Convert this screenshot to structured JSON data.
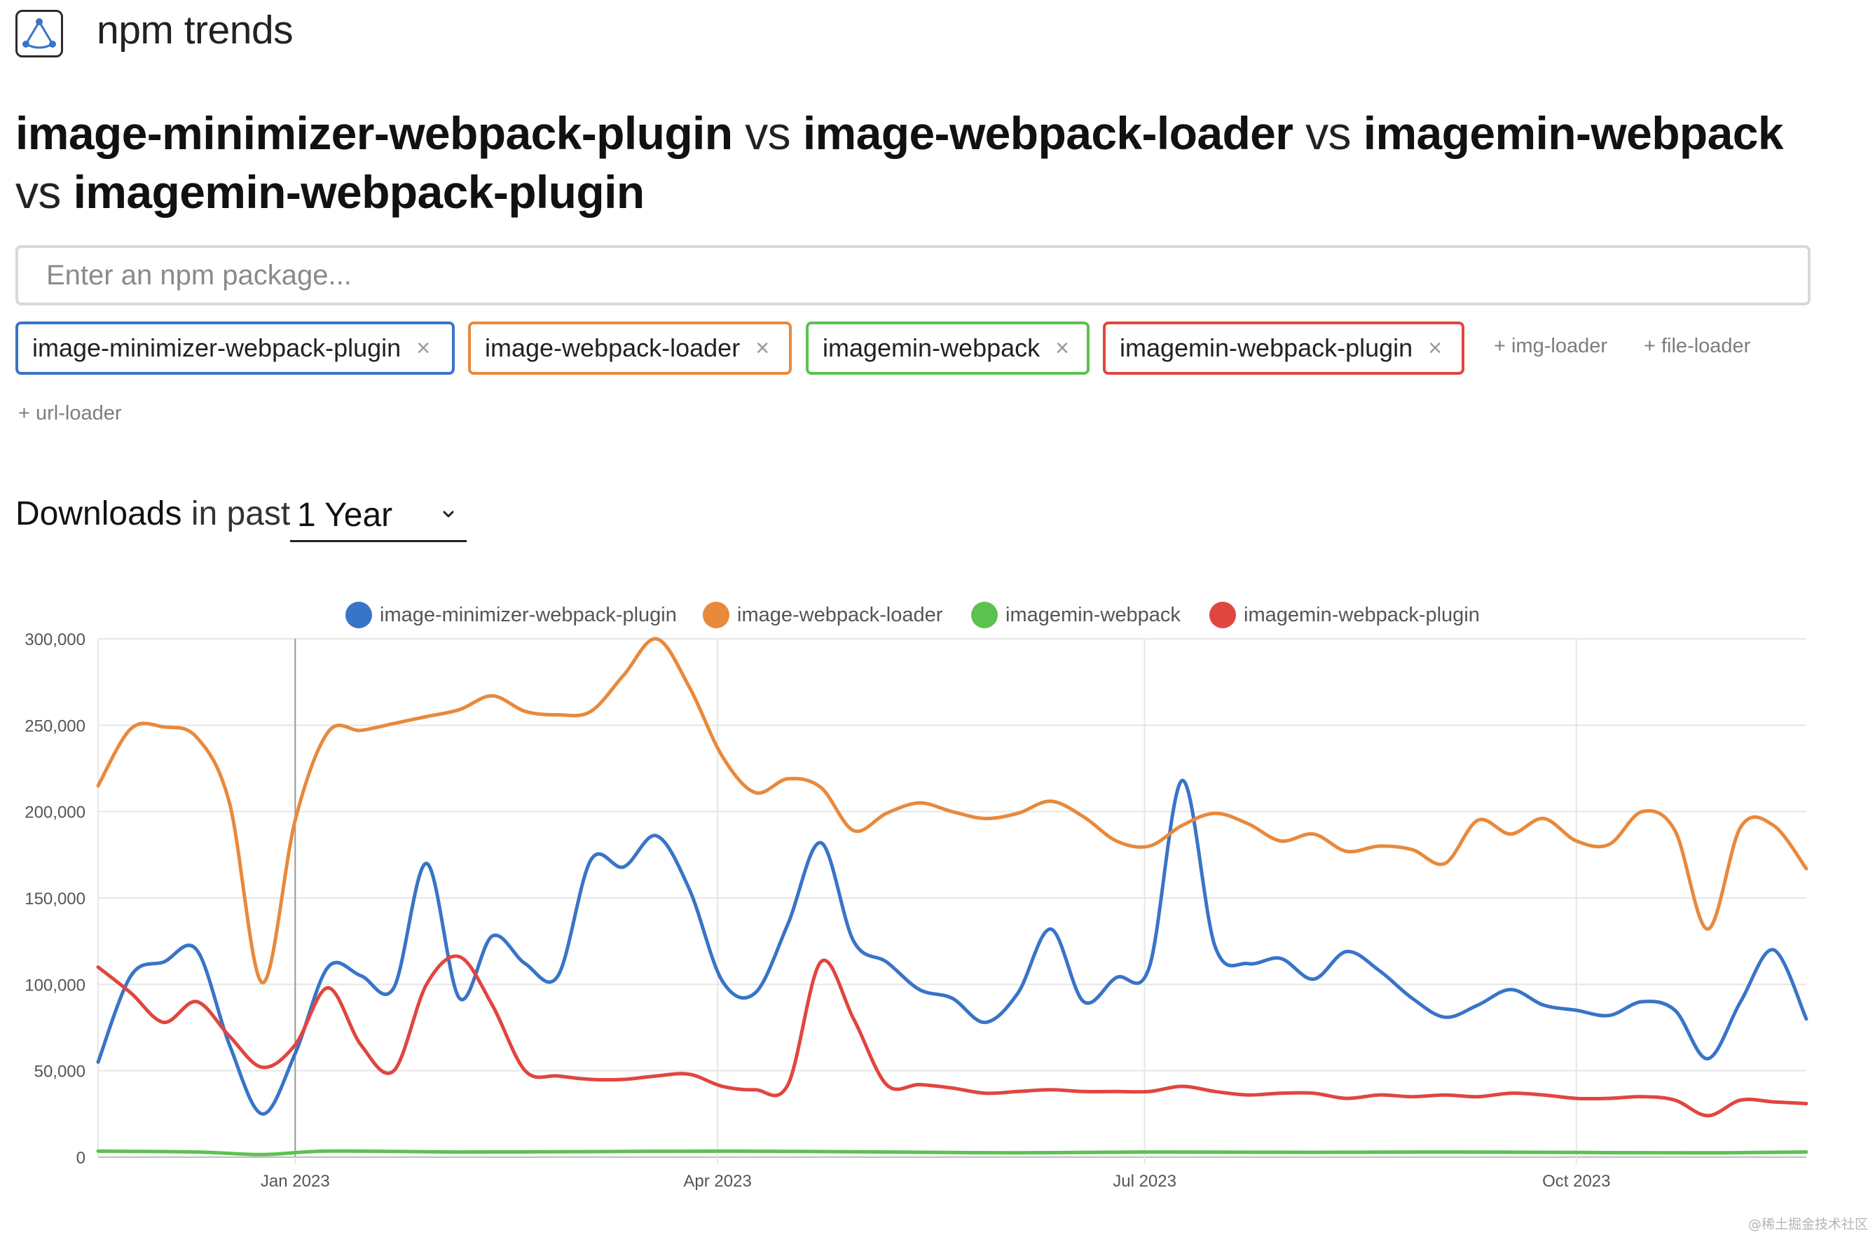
{
  "brand": {
    "name": "npm trends",
    "logo_icon": "npm-trends-logo-icon"
  },
  "title": {
    "packages": [
      "image-minimizer-webpack-plugin",
      "image-webpack-loader",
      "imagemin-webpack",
      "imagemin-webpack-plugin"
    ],
    "separator": "vs"
  },
  "search": {
    "placeholder": "Enter an npm package...",
    "value": ""
  },
  "selected_packages": [
    {
      "name": "image-minimizer-webpack-plugin",
      "color": "#3874c8",
      "remove_label": "×"
    },
    {
      "name": "image-webpack-loader",
      "color": "#e8893c",
      "remove_label": "×"
    },
    {
      "name": "imagemin-webpack",
      "color": "#5cc150",
      "remove_label": "×"
    },
    {
      "name": "imagemin-webpack-plugin",
      "color": "#e0463f",
      "remove_label": "×"
    }
  ],
  "suggestions": [
    "+ img-loader",
    "+ file-loader",
    "+ url-loader"
  ],
  "downloads_header": {
    "strong": "Downloads",
    "light": "in past",
    "period": "1 Year",
    "caret_icon": "chevron-down-icon"
  },
  "chart_data": {
    "type": "line",
    "title": "",
    "xlabel": "",
    "ylabel": "",
    "ylim": [
      0,
      300000
    ],
    "yticks": [
      0,
      50000,
      100000,
      150000,
      200000,
      250000,
      300000
    ],
    "ytick_labels": [
      "0",
      "50,000",
      "100,000",
      "150,000",
      "200,000",
      "250,000",
      "300,000"
    ],
    "xticks": [
      "Jan 2023",
      "Apr 2023",
      "Jul 2023",
      "Oct 2023"
    ],
    "xtick_dates": [
      "2023-01-01",
      "2023-04-01",
      "2023-07-01",
      "2023-10-01"
    ],
    "xlim": [
      "2022-11-20",
      "2023-11-19"
    ],
    "grid": true,
    "legend_position": "top",
    "series": [
      {
        "name": "image-minimizer-webpack-plugin",
        "color": "#3874c8",
        "points": [
          [
            "2022-11-20",
            55000
          ],
          [
            "2022-11-27",
            105000
          ],
          [
            "2022-12-04",
            113000
          ],
          [
            "2022-12-11",
            120000
          ],
          [
            "2022-12-18",
            65000
          ],
          [
            "2022-12-25",
            25000
          ],
          [
            "2023-01-01",
            60000
          ],
          [
            "2023-01-08",
            110000
          ],
          [
            "2023-01-15",
            105000
          ],
          [
            "2023-01-22",
            98000
          ],
          [
            "2023-01-29",
            170000
          ],
          [
            "2023-02-05",
            92000
          ],
          [
            "2023-02-12",
            128000
          ],
          [
            "2023-02-19",
            112000
          ],
          [
            "2023-02-26",
            105000
          ],
          [
            "2023-03-05",
            172000
          ],
          [
            "2023-03-12",
            168000
          ],
          [
            "2023-03-19",
            186000
          ],
          [
            "2023-03-26",
            155000
          ],
          [
            "2023-04-02",
            102000
          ],
          [
            "2023-04-09",
            95000
          ],
          [
            "2023-04-16",
            135000
          ],
          [
            "2023-04-23",
            182000
          ],
          [
            "2023-04-30",
            125000
          ],
          [
            "2023-05-07",
            113000
          ],
          [
            "2023-05-14",
            97000
          ],
          [
            "2023-05-21",
            92000
          ],
          [
            "2023-05-28",
            78000
          ],
          [
            "2023-06-04",
            95000
          ],
          [
            "2023-06-11",
            132000
          ],
          [
            "2023-06-18",
            90000
          ],
          [
            "2023-06-25",
            104000
          ],
          [
            "2023-07-02",
            110000
          ],
          [
            "2023-07-09",
            218000
          ],
          [
            "2023-07-16",
            122000
          ],
          [
            "2023-07-23",
            112000
          ],
          [
            "2023-07-30",
            115000
          ],
          [
            "2023-08-06",
            103000
          ],
          [
            "2023-08-13",
            119000
          ],
          [
            "2023-08-20",
            108000
          ],
          [
            "2023-08-27",
            92000
          ],
          [
            "2023-09-03",
            81000
          ],
          [
            "2023-09-10",
            88000
          ],
          [
            "2023-09-17",
            97000
          ],
          [
            "2023-09-24",
            88000
          ],
          [
            "2023-10-01",
            85000
          ],
          [
            "2023-10-08",
            82000
          ],
          [
            "2023-10-15",
            90000
          ],
          [
            "2023-10-22",
            85000
          ],
          [
            "2023-10-29",
            57000
          ],
          [
            "2023-11-05",
            90000
          ],
          [
            "2023-11-12",
            120000
          ],
          [
            "2023-11-19",
            80000
          ]
        ]
      },
      {
        "name": "image-webpack-loader",
        "color": "#e8893c",
        "points": [
          [
            "2022-11-20",
            215000
          ],
          [
            "2022-11-27",
            248000
          ],
          [
            "2022-12-04",
            249000
          ],
          [
            "2022-12-11",
            243000
          ],
          [
            "2022-12-18",
            205000
          ],
          [
            "2022-12-25",
            101000
          ],
          [
            "2023-01-01",
            195000
          ],
          [
            "2023-01-08",
            246000
          ],
          [
            "2023-01-15",
            247000
          ],
          [
            "2023-01-22",
            251000
          ],
          [
            "2023-01-29",
            255000
          ],
          [
            "2023-02-05",
            259000
          ],
          [
            "2023-02-12",
            267000
          ],
          [
            "2023-02-19",
            258000
          ],
          [
            "2023-02-26",
            256000
          ],
          [
            "2023-03-05",
            258000
          ],
          [
            "2023-03-12",
            279000
          ],
          [
            "2023-03-19",
            300000
          ],
          [
            "2023-03-26",
            272000
          ],
          [
            "2023-04-02",
            232000
          ],
          [
            "2023-04-09",
            211000
          ],
          [
            "2023-04-16",
            219000
          ],
          [
            "2023-04-23",
            214000
          ],
          [
            "2023-04-30",
            189000
          ],
          [
            "2023-05-07",
            199000
          ],
          [
            "2023-05-14",
            205000
          ],
          [
            "2023-05-21",
            200000
          ],
          [
            "2023-05-28",
            196000
          ],
          [
            "2023-06-04",
            199000
          ],
          [
            "2023-06-11",
            206000
          ],
          [
            "2023-06-18",
            197000
          ],
          [
            "2023-06-25",
            183000
          ],
          [
            "2023-07-02",
            180000
          ],
          [
            "2023-07-09",
            192000
          ],
          [
            "2023-07-16",
            199000
          ],
          [
            "2023-07-23",
            193000
          ],
          [
            "2023-07-30",
            183000
          ],
          [
            "2023-08-06",
            187000
          ],
          [
            "2023-08-13",
            177000
          ],
          [
            "2023-08-20",
            180000
          ],
          [
            "2023-08-27",
            178000
          ],
          [
            "2023-09-03",
            170000
          ],
          [
            "2023-09-10",
            195000
          ],
          [
            "2023-09-17",
            187000
          ],
          [
            "2023-09-24",
            196000
          ],
          [
            "2023-10-01",
            183000
          ],
          [
            "2023-10-08",
            181000
          ],
          [
            "2023-10-15",
            200000
          ],
          [
            "2023-10-22",
            189000
          ],
          [
            "2023-10-29",
            132000
          ],
          [
            "2023-11-05",
            191000
          ],
          [
            "2023-11-12",
            192000
          ],
          [
            "2023-11-19",
            167000
          ]
        ]
      },
      {
        "name": "imagemin-webpack",
        "color": "#5cc150",
        "points": [
          [
            "2022-11-20",
            3500
          ],
          [
            "2022-12-11",
            3000
          ],
          [
            "2022-12-25",
            1500
          ],
          [
            "2023-01-08",
            3500
          ],
          [
            "2023-02-05",
            3000
          ],
          [
            "2023-03-05",
            3200
          ],
          [
            "2023-04-02",
            3500
          ],
          [
            "2023-05-07",
            3000
          ],
          [
            "2023-06-04",
            2500
          ],
          [
            "2023-07-02",
            3000
          ],
          [
            "2023-08-06",
            2800
          ],
          [
            "2023-09-03",
            3000
          ],
          [
            "2023-10-01",
            2700
          ],
          [
            "2023-10-29",
            2500
          ],
          [
            "2023-11-19",
            3000
          ]
        ]
      },
      {
        "name": "imagemin-webpack-plugin",
        "color": "#e0463f",
        "points": [
          [
            "2022-11-20",
            110000
          ],
          [
            "2022-11-27",
            95000
          ],
          [
            "2022-12-04",
            78000
          ],
          [
            "2022-12-11",
            90000
          ],
          [
            "2022-12-18",
            70000
          ],
          [
            "2022-12-25",
            52000
          ],
          [
            "2023-01-01",
            65000
          ],
          [
            "2023-01-08",
            98000
          ],
          [
            "2023-01-15",
            65000
          ],
          [
            "2023-01-22",
            50000
          ],
          [
            "2023-01-29",
            100000
          ],
          [
            "2023-02-05",
            116000
          ],
          [
            "2023-02-12",
            88000
          ],
          [
            "2023-02-19",
            50000
          ],
          [
            "2023-02-26",
            47000
          ],
          [
            "2023-03-05",
            45000
          ],
          [
            "2023-03-12",
            45000
          ],
          [
            "2023-03-19",
            47000
          ],
          [
            "2023-03-26",
            48000
          ],
          [
            "2023-04-02",
            41000
          ],
          [
            "2023-04-09",
            39000
          ],
          [
            "2023-04-16",
            42000
          ],
          [
            "2023-04-23",
            113000
          ],
          [
            "2023-04-30",
            80000
          ],
          [
            "2023-05-07",
            42000
          ],
          [
            "2023-05-14",
            42000
          ],
          [
            "2023-05-21",
            40000
          ],
          [
            "2023-05-28",
            37000
          ],
          [
            "2023-06-04",
            38000
          ],
          [
            "2023-06-11",
            39000
          ],
          [
            "2023-06-18",
            38000
          ],
          [
            "2023-06-25",
            38000
          ],
          [
            "2023-07-02",
            38000
          ],
          [
            "2023-07-09",
            41000
          ],
          [
            "2023-07-16",
            38000
          ],
          [
            "2023-07-23",
            36000
          ],
          [
            "2023-07-30",
            37000
          ],
          [
            "2023-08-06",
            37000
          ],
          [
            "2023-08-13",
            34000
          ],
          [
            "2023-08-20",
            36000
          ],
          [
            "2023-08-27",
            35000
          ],
          [
            "2023-09-03",
            36000
          ],
          [
            "2023-09-10",
            35000
          ],
          [
            "2023-09-17",
            37000
          ],
          [
            "2023-09-24",
            36000
          ],
          [
            "2023-10-01",
            34000
          ],
          [
            "2023-10-08",
            34000
          ],
          [
            "2023-10-15",
            35000
          ],
          [
            "2023-10-22",
            33000
          ],
          [
            "2023-10-29",
            24000
          ],
          [
            "2023-11-05",
            33000
          ],
          [
            "2023-11-12",
            32000
          ],
          [
            "2023-11-19",
            31000
          ]
        ]
      }
    ]
  },
  "watermark": "@稀土掘金技术社区"
}
